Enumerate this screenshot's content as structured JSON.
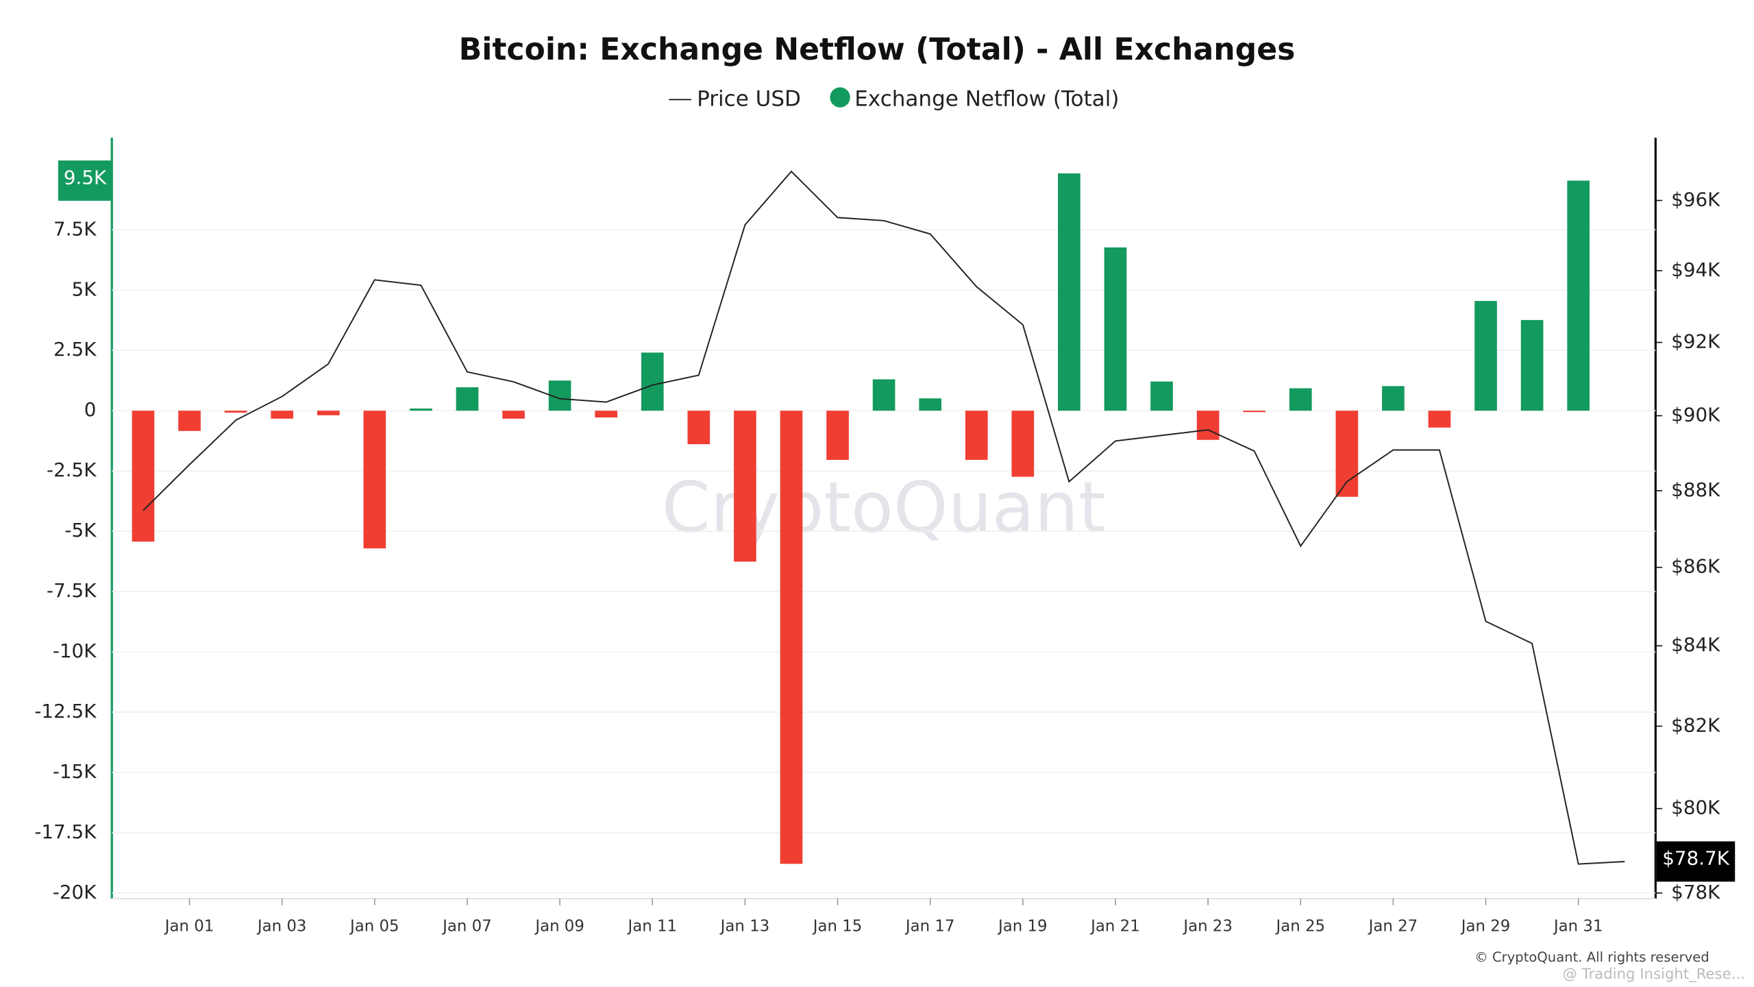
{
  "chart_data": {
    "type": "bar",
    "title": "Bitcoin: Exchange Netflow (Total) - All Exchanges",
    "categories": [
      null,
      "Jan 01",
      null,
      "Jan 03",
      null,
      "Jan 05",
      null,
      "Jan 07",
      null,
      "Jan 09",
      null,
      "Jan 11",
      null,
      "Jan 13",
      null,
      "Jan 15",
      null,
      "Jan 17",
      null,
      "Jan 19",
      null,
      "Jan 21",
      null,
      "Jan 23",
      null,
      "Jan 25",
      null,
      "Jan 27",
      null,
      "Jan 29",
      null,
      "Jan 31",
      null
    ],
    "series": [
      {
        "name": "Price USD",
        "type": "line",
        "axis": "y2",
        "color": "#222222",
        "values": [
          87480,
          88690,
          89880,
          90520,
          91410,
          93740,
          93590,
          91190,
          90920,
          90460,
          90370,
          90830,
          91100,
          95300,
          96840,
          95510,
          95420,
          95040,
          93550,
          92490,
          88240,
          89320,
          89470,
          89620,
          89050,
          86550,
          88240,
          89080,
          89080,
          84620,
          84060,
          78680,
          78740
        ],
        "value_labels": [
          null,
          null,
          null,
          null,
          null,
          null,
          null,
          null,
          null,
          null,
          null,
          null,
          null,
          null,
          null,
          null,
          null,
          null,
          null,
          null,
          null,
          null,
          null,
          null,
          null,
          null,
          null,
          null,
          null,
          null,
          null,
          null,
          "$78.7K"
        ]
      },
      {
        "name": "Exchange Netflow (Total)",
        "type": "bar",
        "color": "#139a5e",
        "negative_color": "#f03e33",
        "values": [
          -5430,
          -840,
          -80,
          -330,
          -190,
          -5710,
          90,
          970,
          -330,
          1250,
          -280,
          2410,
          -1390,
          -6260,
          -18790,
          -2040,
          1300,
          510,
          -2040,
          -2740,
          9840,
          6770,
          1210,
          -1210,
          -60,
          930,
          -3570,
          1020,
          -700,
          4550,
          3760,
          9540,
          null
        ],
        "value_labels": [
          null,
          null,
          null,
          null,
          null,
          null,
          null,
          null,
          null,
          null,
          null,
          null,
          null,
          null,
          null,
          null,
          null,
          null,
          null,
          null,
          null,
          null,
          null,
          null,
          null,
          null,
          null,
          null,
          null,
          null,
          null,
          "9.5K",
          null
        ]
      }
    ],
    "ylim": [
      -20000,
      11230
    ],
    "yticks": [
      {
        "value": -20000,
        "label": "-20K"
      },
      {
        "value": -17500,
        "label": "-17.5K"
      },
      {
        "value": -15000,
        "label": "-15K"
      },
      {
        "value": -12500,
        "label": "-12.5K"
      },
      {
        "value": -10000,
        "label": "-10K"
      },
      {
        "value": -7500,
        "label": "-7.5K"
      },
      {
        "value": -5000,
        "label": "-5K"
      },
      {
        "value": -2500,
        "label": "-2.5K"
      },
      0,
      {
        "value": 2500,
        "label": "2.5K"
      },
      {
        "value": 5000,
        "label": "5K"
      },
      {
        "value": 7500,
        "label": "7.5K"
      }
    ],
    "y2lim": [
      78000,
      97760
    ],
    "y2log": true,
    "y2ticks": [
      {
        "value": 78000,
        "label": "$78K"
      },
      {
        "value": 80000,
        "label": "$80K"
      },
      {
        "value": 82000,
        "label": "$82K"
      },
      {
        "value": 84000,
        "label": "$84K"
      },
      {
        "value": 86000,
        "label": "$86K"
      },
      {
        "value": 88000,
        "label": "$88K"
      },
      {
        "value": 90000,
        "label": "$90K"
      },
      {
        "value": 92000,
        "label": "$92K"
      },
      {
        "value": 94000,
        "label": "$94K"
      },
      {
        "value": 96000,
        "label": "$96K"
      }
    ],
    "grid": true,
    "legend": "top",
    "watermark": "CryptoQuant",
    "copyright": "© CryptoQuant. All rights reserved",
    "credit": "@ Trading Insight_Rese..."
  }
}
